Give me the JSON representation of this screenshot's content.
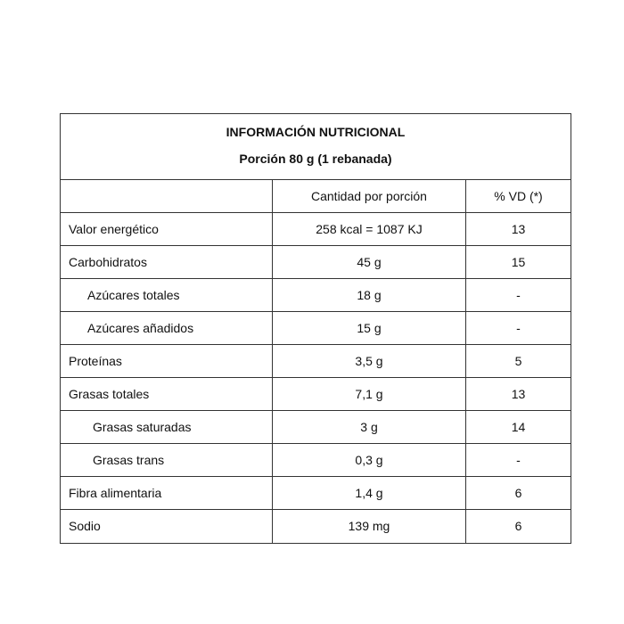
{
  "title": "INFORMACIÓN NUTRICIONAL",
  "serving": "Porción 80 g (1 rebanada)",
  "columns": [
    "",
    "Cantidad por porción",
    "% VD (*)"
  ],
  "rows": [
    {
      "name": "Valor energético",
      "amount": "258 kcal = 1087 KJ",
      "vd": "13",
      "indent": 0
    },
    {
      "name": "Carbohidratos",
      "amount": "45 g",
      "vd": "15",
      "indent": 0
    },
    {
      "name": "Azúcares totales",
      "amount": "18 g",
      "vd": "-",
      "indent": 1
    },
    {
      "name": "Azúcares añadidos",
      "amount": "15 g",
      "vd": "-",
      "indent": 1
    },
    {
      "name": "Proteínas",
      "amount": "3,5 g",
      "vd": "5",
      "indent": 0
    },
    {
      "name": "Grasas totales",
      "amount": "7,1 g",
      "vd": "13",
      "indent": 0
    },
    {
      "name": "Grasas saturadas",
      "amount": "3 g",
      "vd": "14",
      "indent": 2
    },
    {
      "name": "Grasas trans",
      "amount": "0,3 g",
      "vd": "-",
      "indent": 2
    },
    {
      "name": "Fibra alimentaria",
      "amount": "1,4 g",
      "vd": "6",
      "indent": 0
    },
    {
      "name": "Sodio",
      "amount": "139 mg",
      "vd": "6",
      "indent": 0
    }
  ]
}
